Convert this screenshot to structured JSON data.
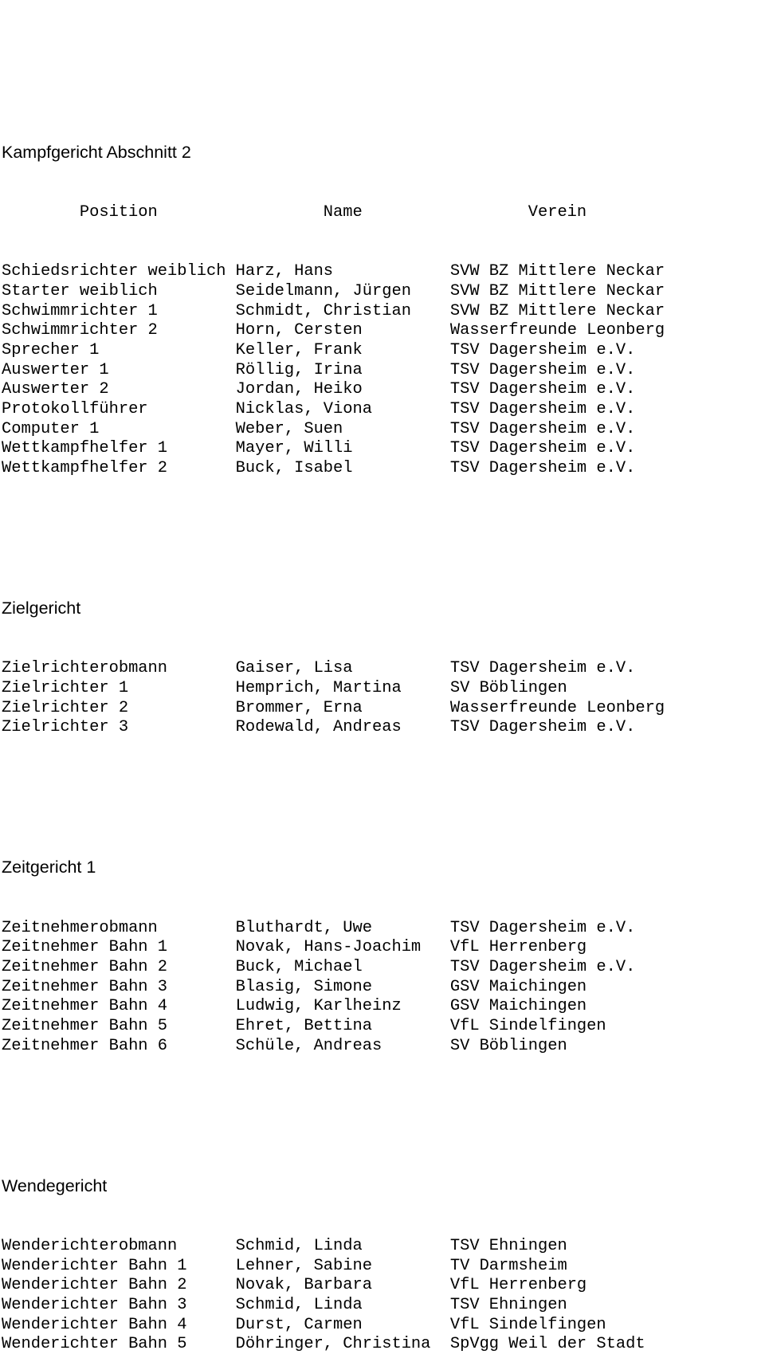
{
  "sections": {
    "kampfgericht": {
      "title": "Kampfgericht Abschnitt 2",
      "header": {
        "position": "Position",
        "name": "Name",
        "verein": "Verein"
      },
      "rows": [
        {
          "position": "Schiedsrichter weiblich",
          "name": "Harz, Hans",
          "verein": "SVW BZ Mittlere Neckar"
        },
        {
          "position": "Starter weiblich",
          "name": "Seidelmann, Jürgen",
          "verein": "SVW BZ Mittlere Neckar"
        },
        {
          "position": "Schwimmrichter 1",
          "name": "Schmidt, Christian",
          "verein": "SVW BZ Mittlere Neckar"
        },
        {
          "position": "Schwimmrichter 2",
          "name": "Horn, Cersten",
          "verein": "Wasserfreunde Leonberg"
        },
        {
          "position": "Sprecher 1",
          "name": "Keller, Frank",
          "verein": "TSV Dagersheim e.V."
        },
        {
          "position": "Auswerter 1",
          "name": "Röllig, Irina",
          "verein": "TSV Dagersheim e.V."
        },
        {
          "position": "Auswerter 2",
          "name": "Jordan, Heiko",
          "verein": "TSV Dagersheim e.V."
        },
        {
          "position": "Protokollführer",
          "name": "Nicklas, Viona",
          "verein": "TSV Dagersheim e.V."
        },
        {
          "position": "Computer 1",
          "name": "Weber, Suen",
          "verein": "TSV Dagersheim e.V."
        },
        {
          "position": "Wettkampfhelfer 1",
          "name": "Mayer, Willi",
          "verein": "TSV Dagersheim e.V."
        },
        {
          "position": "Wettkampfhelfer 2",
          "name": "Buck, Isabel",
          "verein": "TSV Dagersheim e.V."
        }
      ]
    },
    "zielgericht": {
      "title": "Zielgericht",
      "rows": [
        {
          "position": "Zielrichterobmann",
          "name": "Gaiser, Lisa",
          "verein": "TSV Dagersheim e.V."
        },
        {
          "position": "Zielrichter 1",
          "name": "Hemprich, Martina",
          "verein": "SV Böblingen"
        },
        {
          "position": "Zielrichter 2",
          "name": "Brommer, Erna",
          "verein": "Wasserfreunde Leonberg"
        },
        {
          "position": "Zielrichter 3",
          "name": "Rodewald, Andreas",
          "verein": "TSV Dagersheim e.V."
        }
      ]
    },
    "zeitgericht": {
      "title": "Zeitgericht 1",
      "rows": [
        {
          "position": "Zeitnehmerobmann",
          "name": "Bluthardt, Uwe",
          "verein": "TSV Dagersheim e.V."
        },
        {
          "position": "Zeitnehmer Bahn 1",
          "name": "Novak, Hans-Joachim",
          "verein": "VfL Herrenberg"
        },
        {
          "position": "Zeitnehmer Bahn 2",
          "name": "Buck, Michael",
          "verein": "TSV Dagersheim e.V."
        },
        {
          "position": "Zeitnehmer Bahn 3",
          "name": "Blasig, Simone",
          "verein": "GSV Maichingen"
        },
        {
          "position": "Zeitnehmer Bahn 4",
          "name": "Ludwig, Karlheinz",
          "verein": "GSV Maichingen"
        },
        {
          "position": "Zeitnehmer Bahn 5",
          "name": "Ehret, Bettina",
          "verein": "VfL Sindelfingen"
        },
        {
          "position": "Zeitnehmer Bahn 6",
          "name": "Schüle, Andreas",
          "verein": "SV Böblingen"
        }
      ]
    },
    "wendegericht": {
      "title": "Wendegericht",
      "rows": [
        {
          "position": "Wenderichterobmann",
          "name": "Schmid, Linda",
          "verein": "TSV Ehningen"
        },
        {
          "position": "Wenderichter Bahn 1",
          "name": "Lehner, Sabine",
          "verein": "TV Darmsheim"
        },
        {
          "position": "Wenderichter Bahn 2",
          "name": "Novak, Barbara",
          "verein": "VfL Herrenberg"
        },
        {
          "position": "Wenderichter Bahn 3",
          "name": "Schmid, Linda",
          "verein": "TSV Ehningen"
        },
        {
          "position": "Wenderichter Bahn 4",
          "name": "Durst, Carmen",
          "verein": "VfL Sindelfingen"
        },
        {
          "position": "Wenderichter Bahn 5",
          "name": "Döhringer, Christina",
          "verein": "SpVgg Weil der Stadt"
        }
      ]
    }
  }
}
